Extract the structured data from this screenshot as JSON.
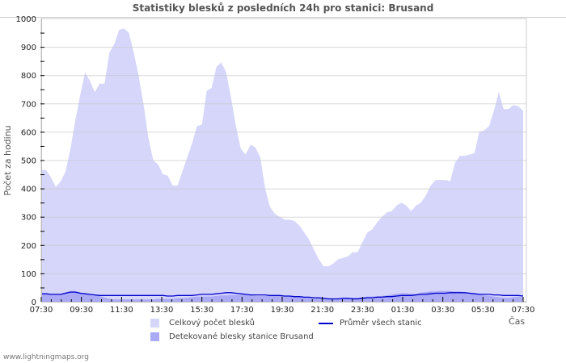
{
  "chart_data": {
    "type": "area",
    "title": "Statistiky blesků z posledních 24h pro stanici: Brusand",
    "xlabel": "Čas",
    "ylabel": "Počet za hodinu",
    "ylim": [
      0,
      1000
    ],
    "yticks": [
      0,
      100,
      200,
      300,
      400,
      500,
      600,
      700,
      800,
      900,
      1000
    ],
    "xticks": [
      "07:30",
      "09:30",
      "11:30",
      "13:30",
      "15:30",
      "17:30",
      "19:30",
      "21:30",
      "23:30",
      "01:30",
      "03:30",
      "05:30",
      "07:30"
    ],
    "grid": true,
    "legend_position": "bottom",
    "x_step_minutes": 15,
    "series": [
      {
        "name": "Celkový počet blesků",
        "kind": "area",
        "color": "#d6d6fb",
        "values": [
          465,
          465,
          440,
          405,
          425,
          460,
          540,
          640,
          730,
          810,
          780,
          740,
          770,
          770,
          880,
          910,
          960,
          965,
          950,
          880,
          800,
          700,
          580,
          500,
          485,
          450,
          445,
          410,
          410,
          460,
          510,
          560,
          620,
          625,
          745,
          755,
          830,
          845,
          810,
          720,
          620,
          540,
          520,
          555,
          545,
          510,
          400,
          335,
          310,
          300,
          290,
          290,
          285,
          270,
          245,
          220,
          185,
          150,
          125,
          125,
          135,
          150,
          155,
          160,
          175,
          175,
          210,
          245,
          255,
          280,
          300,
          315,
          320,
          340,
          350,
          340,
          320,
          340,
          350,
          375,
          410,
          430,
          430,
          430,
          425,
          490,
          515,
          515,
          520,
          525,
          600,
          605,
          620,
          675,
          740,
          680,
          680,
          695,
          690,
          675
        ]
      },
      {
        "name": "Detekované blesky stanice Brusand",
        "kind": "area",
        "color": "#aaaaf5",
        "values": [
          28,
          28,
          27,
          25,
          28,
          33,
          38,
          38,
          33,
          28,
          25,
          22,
          20,
          15,
          10,
          8,
          8,
          8,
          8,
          8,
          8,
          8,
          8,
          8,
          10,
          10,
          10,
          10,
          12,
          12,
          14,
          16,
          18,
          18,
          18,
          18,
          20,
          22,
          22,
          24,
          24,
          24,
          24,
          22,
          20,
          20,
          20,
          20,
          20,
          20,
          20,
          20,
          20,
          20,
          18,
          16,
          14,
          12,
          10,
          10,
          10,
          10,
          10,
          12,
          14,
          14,
          16,
          18,
          18,
          20,
          20,
          22,
          25,
          28,
          30,
          30,
          28,
          28,
          32,
          34,
          36,
          36,
          38,
          38,
          38,
          36,
          36,
          34,
          32,
          30,
          25,
          22,
          20,
          18,
          16,
          14,
          14,
          16,
          18,
          15
        ]
      },
      {
        "name": "Průměr všech stanic",
        "kind": "line",
        "color": "#0000cc",
        "values": [
          28,
          28,
          26,
          26,
          26,
          30,
          34,
          34,
          30,
          28,
          26,
          24,
          22,
          22,
          22,
          22,
          22,
          22,
          22,
          22,
          22,
          22,
          22,
          22,
          22,
          22,
          20,
          20,
          22,
          22,
          22,
          22,
          24,
          26,
          26,
          26,
          28,
          30,
          32,
          32,
          30,
          28,
          26,
          24,
          24,
          24,
          24,
          22,
          22,
          22,
          20,
          20,
          18,
          18,
          16,
          16,
          14,
          14,
          12,
          10,
          10,
          10,
          12,
          12,
          10,
          10,
          12,
          14,
          14,
          16,
          16,
          18,
          18,
          20,
          22,
          22,
          22,
          24,
          26,
          26,
          28,
          30,
          30,
          30,
          32,
          32,
          32,
          32,
          30,
          28,
          26,
          26,
          26,
          24,
          24,
          22,
          22,
          22,
          22,
          20
        ]
      }
    ]
  },
  "legend": {
    "items": [
      {
        "label": "Celkový počet blesků",
        "color": "#d6d6fb"
      },
      {
        "label": "Detekované blesky stanice Brusand",
        "color": "#aaaaf5"
      },
      {
        "label": "Průměr všech stanic",
        "color": "#0000cc"
      }
    ]
  },
  "footer": {
    "text": "www.lightningmaps.org"
  }
}
